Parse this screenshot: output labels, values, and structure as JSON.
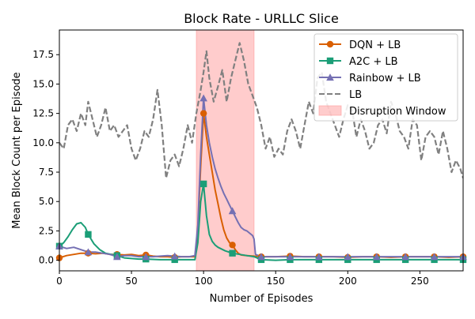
{
  "chart_data": {
    "type": "line",
    "title": "Block Rate - URLLC Slice",
    "xlabel": "Number of Episodes",
    "ylabel": "Mean Block Count per Episode",
    "xlim": [
      0,
      280
    ],
    "ylim": [
      -0.9,
      19.6
    ],
    "xticks": [
      0,
      50,
      100,
      150,
      200,
      250
    ],
    "yticks": [
      0.0,
      2.5,
      5.0,
      7.5,
      10.0,
      12.5,
      15.0,
      17.5
    ],
    "ytick_labels": [
      "0.0",
      "2.5",
      "5.0",
      "7.5",
      "10.0",
      "12.5",
      "15.0",
      "17.5"
    ],
    "grid": false,
    "legend_position": "top-right",
    "shaded_region": {
      "label": "Disruption Window",
      "x_start": 95,
      "x_end": 135,
      "color": "#ff9999"
    },
    "series": [
      {
        "name": "DQN + LB",
        "color": "#d95f02",
        "style": "solid",
        "marker": "circle",
        "x": [
          0,
          5,
          10,
          15,
          20,
          25,
          30,
          35,
          40,
          45,
          50,
          55,
          60,
          65,
          70,
          75,
          80,
          85,
          90,
          94,
          96,
          98,
          100,
          102,
          104,
          106,
          108,
          110,
          112,
          114,
          116,
          118,
          120,
          122,
          124,
          126,
          130,
          135,
          140,
          145,
          150,
          160,
          170,
          180,
          190,
          200,
          210,
          220,
          230,
          240,
          250,
          260,
          270,
          280
        ],
        "values": [
          0.2,
          0.4,
          0.5,
          0.6,
          0.6,
          0.55,
          0.6,
          0.5,
          0.5,
          0.45,
          0.5,
          0.4,
          0.45,
          0.35,
          0.3,
          0.3,
          0.25,
          0.3,
          0.3,
          0.3,
          2.5,
          8.0,
          12.5,
          10.5,
          9.0,
          7.5,
          6.0,
          4.8,
          3.6,
          2.6,
          1.9,
          1.5,
          1.3,
          0.9,
          0.6,
          0.45,
          0.4,
          0.35,
          0.3,
          0.3,
          0.3,
          0.35,
          0.3,
          0.3,
          0.3,
          0.25,
          0.3,
          0.3,
          0.25,
          0.3,
          0.3,
          0.3,
          0.25,
          0.3
        ],
        "marker_x": [
          0,
          20,
          40,
          60,
          80,
          100,
          120,
          140,
          160,
          180,
          200,
          220,
          240,
          260,
          280
        ],
        "marker_values": [
          0.2,
          0.6,
          0.5,
          0.45,
          0.25,
          12.5,
          1.3,
          0.3,
          0.35,
          0.3,
          0.25,
          0.3,
          0.3,
          0.3,
          0.3
        ]
      },
      {
        "name": "A2C + LB",
        "color": "#1b9e77",
        "style": "solid",
        "marker": "square",
        "x": [
          0,
          3,
          6,
          9,
          12,
          15,
          18,
          20,
          24,
          28,
          32,
          36,
          40,
          45,
          50,
          55,
          60,
          70,
          80,
          90,
          94,
          96,
          98,
          100,
          102,
          104,
          106,
          108,
          110,
          115,
          120,
          125,
          130,
          135,
          140,
          150,
          160,
          170,
          180,
          190,
          200,
          210,
          220,
          230,
          240,
          250,
          260,
          270,
          280
        ],
        "values": [
          1.2,
          1.5,
          2.0,
          2.6,
          3.1,
          3.2,
          2.8,
          2.2,
          1.4,
          0.9,
          0.6,
          0.5,
          0.4,
          0.2,
          0.15,
          0.1,
          0.1,
          0.05,
          0.05,
          0.05,
          0.05,
          1.5,
          5.0,
          6.5,
          3.8,
          2.2,
          1.6,
          1.3,
          1.1,
          0.8,
          0.6,
          0.5,
          0.4,
          0.3,
          0.05,
          0.0,
          0.05,
          0.05,
          0.05,
          0.05,
          0.05,
          0.05,
          0.05,
          0.05,
          0.05,
          0.05,
          0.05,
          0.05,
          0.05
        ],
        "marker_x": [
          0,
          20,
          40,
          60,
          80,
          100,
          120,
          140,
          160,
          180,
          200,
          220,
          240,
          260,
          280
        ],
        "marker_values": [
          1.2,
          2.2,
          0.4,
          0.1,
          0.05,
          6.5,
          0.6,
          0.05,
          0.05,
          0.05,
          0.05,
          0.05,
          0.05,
          0.05,
          0.05
        ]
      },
      {
        "name": "Rainbow + LB",
        "color": "#7570b3",
        "style": "solid",
        "marker": "triangle",
        "x": [
          0,
          5,
          10,
          15,
          20,
          25,
          30,
          35,
          40,
          45,
          50,
          55,
          60,
          65,
          70,
          75,
          80,
          85,
          90,
          94,
          96,
          98,
          100,
          102,
          104,
          106,
          108,
          110,
          112,
          114,
          116,
          118,
          120,
          122,
          124,
          126,
          128,
          130,
          132,
          134,
          135,
          136,
          138,
          140,
          145,
          150,
          160,
          170,
          180,
          190,
          200,
          210,
          220,
          230,
          240,
          250,
          260,
          270,
          280
        ],
        "values": [
          1.2,
          1.0,
          1.1,
          0.9,
          0.7,
          0.7,
          0.6,
          0.5,
          0.3,
          0.4,
          0.4,
          0.3,
          0.3,
          0.3,
          0.35,
          0.4,
          0.35,
          0.3,
          0.3,
          0.4,
          3.0,
          9.0,
          13.8,
          11.5,
          10.0,
          8.8,
          7.8,
          7.0,
          6.3,
          5.7,
          5.2,
          4.7,
          4.2,
          3.7,
          3.2,
          2.8,
          2.6,
          2.5,
          2.3,
          2.1,
          1.8,
          0.5,
          0.4,
          0.3,
          0.3,
          0.3,
          0.3,
          0.3,
          0.3,
          0.3,
          0.3,
          0.3,
          0.3,
          0.3,
          0.3,
          0.3,
          0.3,
          0.3,
          0.3
        ],
        "marker_x": [
          0,
          20,
          40,
          60,
          80,
          100,
          120,
          140,
          160,
          180,
          200,
          220,
          240,
          260,
          280
        ],
        "marker_values": [
          1.2,
          0.7,
          0.3,
          0.3,
          0.35,
          13.8,
          4.2,
          0.3,
          0.3,
          0.3,
          0.3,
          0.3,
          0.3,
          0.3,
          0.3
        ]
      },
      {
        "name": "LB",
        "color": "#808080",
        "style": "dashed",
        "marker": "none",
        "x": [
          0,
          3,
          6,
          9,
          12,
          15,
          18,
          20,
          23,
          26,
          29,
          32,
          35,
          38,
          41,
          44,
          47,
          50,
          53,
          56,
          59,
          62,
          65,
          68,
          71,
          74,
          77,
          80,
          83,
          86,
          89,
          92,
          95,
          98,
          100,
          102,
          104,
          107,
          110,
          113,
          116,
          119,
          122,
          125,
          128,
          131,
          134,
          137,
          140,
          143,
          146,
          149,
          152,
          155,
          158,
          161,
          164,
          167,
          170,
          173,
          176,
          179,
          182,
          185,
          188,
          191,
          194,
          197,
          200,
          203,
          206,
          209,
          212,
          215,
          218,
          221,
          224,
          227,
          230,
          233,
          236,
          239,
          242,
          245,
          248,
          251,
          254,
          257,
          260,
          263,
          266,
          269,
          272,
          275,
          278,
          280
        ],
        "values": [
          10.0,
          9.5,
          11.5,
          12.0,
          11.0,
          12.5,
          11.5,
          13.5,
          12.0,
          10.5,
          11.5,
          13.0,
          11.0,
          11.5,
          10.5,
          11.0,
          11.5,
          9.5,
          8.5,
          9.5,
          11.0,
          10.5,
          12.0,
          14.5,
          11.5,
          7.0,
          8.5,
          9.0,
          8.0,
          9.5,
          11.5,
          10.0,
          12.5,
          14.5,
          16.0,
          17.8,
          15.5,
          13.5,
          14.8,
          16.2,
          13.5,
          15.5,
          17.0,
          18.5,
          17.0,
          15.0,
          14.0,
          13.0,
          11.5,
          9.5,
          10.5,
          8.8,
          9.5,
          9.0,
          11.0,
          12.0,
          11.0,
          9.5,
          11.5,
          13.5,
          12.5,
          15.5,
          16.0,
          13.5,
          12.5,
          11.5,
          10.5,
          12.0,
          13.2,
          12.8,
          10.5,
          12.0,
          11.0,
          9.5,
          10.0,
          11.5,
          12.0,
          10.8,
          13.5,
          12.5,
          11.0,
          10.5,
          9.5,
          12.0,
          11.5,
          8.5,
          10.5,
          11.0,
          10.5,
          9.0,
          11.0,
          9.5,
          7.5,
          8.5,
          7.8,
          7.0
        ]
      }
    ]
  }
}
